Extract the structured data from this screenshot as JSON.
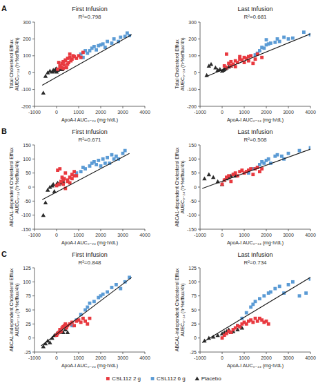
{
  "chart_data": [
    {
      "type": "scatter",
      "title": "First Infusion",
      "subtitle": "R²=0.798",
      "ylabel": "Total Cholesterol Efflux\nAUEC₀₋₂₄ (h·%efflux/4h)",
      "xlabel": "ApoA-I AUC₀₋₂₄ (mg·h/dL)",
      "xlim": [
        -1000,
        4000
      ],
      "ylim": [
        -200,
        300
      ],
      "xticks": [
        -1000,
        0,
        1000,
        2000,
        3000,
        4000
      ],
      "yticks": [
        -200,
        -100,
        0,
        100,
        200,
        300
      ],
      "grid": false,
      "legend": "bottom",
      "annotations": [
        {
          "text": "A"
        }
      ],
      "series": [
        {
          "name": "CSL112 2 g",
          "color": "#e8393f",
          "marker": "square",
          "x": [
            50,
            100,
            150,
            200,
            250,
            300,
            350,
            400,
            450,
            500,
            550,
            600,
            650,
            700,
            750,
            800,
            200,
            300,
            400,
            500,
            600,
            900,
            1000,
            1100,
            1200
          ],
          "values": [
            20,
            60,
            40,
            30,
            55,
            65,
            45,
            70,
            30,
            85,
            60,
            90,
            70,
            80,
            100,
            95,
            35,
            25,
            75,
            50,
            110,
            85,
            100,
            90,
            120
          ]
        },
        {
          "name": "CSL112 6 g",
          "color": "#5b9bd5",
          "marker": "square",
          "x": [
            1100,
            1300,
            1500,
            1600,
            1700,
            1800,
            1900,
            2000,
            2100,
            2200,
            2300,
            2500,
            2600,
            2800,
            2900,
            3100,
            3200,
            3300,
            1400,
            1200
          ],
          "values": [
            110,
            130,
            130,
            145,
            155,
            135,
            160,
            165,
            170,
            150,
            185,
            175,
            200,
            185,
            210,
            215,
            235,
            220,
            115,
            90
          ]
        },
        {
          "name": "Placebo",
          "color": "#2b2b2b",
          "marker": "triangle",
          "x": [
            -600,
            -500,
            -400,
            -300,
            -200,
            -150,
            -100,
            -50,
            0,
            0,
            50,
            100,
            150,
            200,
            250
          ],
          "values": [
            -120,
            -20,
            0,
            10,
            5,
            15,
            10,
            20,
            25,
            5,
            15,
            20,
            25,
            30,
            20
          ]
        },
        {
          "type": "line",
          "color": "#1a1a1a",
          "x": [
            -650,
            3400
          ],
          "values": [
            -75,
            225
          ]
        }
      ]
    },
    {
      "type": "scatter",
      "title": "Last Infusion",
      "subtitle": "R²=0.681",
      "ylabel": "Total Cholesterol Efflux\nAUEC₀₋₂₄ (h·%efflux/4h)",
      "xlabel": "ApoA-I AUC₀₋₂₄ (mg·h/dL)",
      "xlim": [
        -1000,
        4000
      ],
      "ylim": [
        -200,
        300
      ],
      "xticks": [
        -1000,
        0,
        1000,
        2000,
        3000,
        4000
      ],
      "yticks": [
        -200,
        -100,
        0,
        100,
        200,
        300
      ],
      "grid": false,
      "series": [
        {
          "color": "#e8393f",
          "marker": "square",
          "x": [
            100,
            200,
            300,
            400,
            500,
            600,
            700,
            800,
            900,
            1000,
            1100,
            1200,
            1300,
            1400,
            1500,
            200,
            400,
            600,
            800,
            1000,
            1200,
            1600,
            1800
          ],
          "values": [
            40,
            30,
            55,
            65,
            50,
            70,
            60,
            80,
            75,
            90,
            85,
            95,
            100,
            55,
            80,
            110,
            40,
            35,
            95,
            60,
            70,
            110,
            90
          ]
        },
        {
          "color": "#5b9bd5",
          "marker": "square",
          "x": [
            1600,
            1700,
            1800,
            1900,
            2000,
            2100,
            2200,
            2400,
            2500,
            2600,
            2800,
            3000,
            3200,
            3700,
            4000,
            1500,
            2000
          ],
          "values": [
            115,
            130,
            150,
            145,
            165,
            170,
            175,
            180,
            200,
            185,
            210,
            200,
            205,
            240,
            225,
            105,
            195
          ]
        },
        {
          "color": "#2b2b2b",
          "marker": "triangle",
          "x": [
            -700,
            -600,
            -500,
            -300,
            -200,
            -100,
            0,
            50,
            100,
            150,
            200,
            300,
            400
          ],
          "values": [
            -15,
            40,
            50,
            30,
            15,
            20,
            10,
            15,
            20,
            25,
            30,
            35,
            40
          ]
        },
        {
          "type": "line",
          "color": "#1a1a1a",
          "x": [
            -750,
            4000
          ],
          "values": [
            -25,
            230
          ]
        }
      ]
    },
    {
      "type": "scatter",
      "title": "First Infusion",
      "subtitle": "R²=0.671",
      "ylabel": "ABCA1-dependent Cholesterol Efflux\nAUEC₀₋₂₄ (h·%efflux/4h)",
      "xlabel": "ApoA-I AUC₀₋₂₄ (mg·h/dL)",
      "xlim": [
        -1000,
        4000
      ],
      "ylim": [
        -150,
        150
      ],
      "xticks": [
        -1000,
        0,
        1000,
        2000,
        3000,
        4000
      ],
      "yticks": [
        -150,
        -100,
        -50,
        0,
        50,
        100,
        150
      ],
      "grid": false,
      "annotations": [
        {
          "text": "B"
        }
      ],
      "series": [
        {
          "color": "#e8393f",
          "marker": "square",
          "x": [
            0,
            50,
            100,
            200,
            250,
            300,
            350,
            400,
            500,
            600,
            700,
            800,
            150,
            400,
            600,
            700,
            800,
            900,
            300,
            500
          ],
          "values": [
            5,
            60,
            10,
            20,
            35,
            25,
            30,
            -5,
            25,
            35,
            30,
            40,
            65,
            50,
            15,
            45,
            55,
            40,
            10,
            20
          ]
        },
        {
          "color": "#5b9bd5",
          "marker": "square",
          "x": [
            900,
            1100,
            1300,
            1500,
            1600,
            1700,
            1900,
            2000,
            2100,
            2300,
            2400,
            2500,
            2700,
            2800,
            3000,
            3100,
            1200,
            1800,
            2200,
            2600
          ],
          "values": [
            50,
            55,
            65,
            75,
            85,
            90,
            95,
            75,
            100,
            105,
            85,
            115,
            110,
            100,
            120,
            130,
            70,
            80,
            85,
            100
          ]
        },
        {
          "color": "#2b2b2b",
          "marker": "triangle",
          "x": [
            -600,
            -500,
            -400,
            -300,
            -200,
            -150,
            -100,
            0,
            50,
            100,
            200,
            300
          ],
          "values": [
            -100,
            -55,
            -10,
            0,
            5,
            10,
            -15,
            10,
            15,
            10,
            15,
            20
          ]
        },
        {
          "type": "line",
          "color": "#1a1a1a",
          "x": [
            -650,
            3300
          ],
          "values": [
            -45,
            120
          ]
        }
      ]
    },
    {
      "type": "scatter",
      "title": "Last Infusion",
      "subtitle": "R²=0.508",
      "ylabel": "ABCA1-dependent Cholesterol Efflux\nAUEC₀₋₂₄ (h·%efflux/4h)",
      "xlabel": "ApoA-I AUC₀₋₂₄ (mg·h/dL)",
      "xlim": [
        -1000,
        4000
      ],
      "ylim": [
        -150,
        150
      ],
      "xticks": [
        -1000,
        0,
        1000,
        2000,
        3000,
        4000
      ],
      "yticks": [
        -150,
        -100,
        -50,
        0,
        50,
        100,
        150
      ],
      "grid": false,
      "series": [
        {
          "color": "#e8393f",
          "marker": "square",
          "x": [
            0,
            100,
            200,
            300,
            400,
            500,
            600,
            700,
            800,
            900,
            1000,
            1100,
            1200,
            1300,
            1400,
            1500,
            1600,
            1700,
            1800
          ],
          "values": [
            10,
            25,
            35,
            40,
            20,
            45,
            50,
            40,
            55,
            60,
            50,
            55,
            60,
            65,
            45,
            65,
            70,
            55,
            65
          ]
        },
        {
          "color": "#5b9bd5",
          "marker": "square",
          "x": [
            1200,
            1400,
            1600,
            1700,
            1800,
            1900,
            2000,
            2100,
            2200,
            2400,
            2500,
            2700,
            2800,
            3000,
            3500,
            4000
          ],
          "values": [
            50,
            65,
            70,
            80,
            90,
            85,
            95,
            100,
            85,
            110,
            115,
            110,
            100,
            120,
            130,
            140
          ]
        },
        {
          "color": "#2b2b2b",
          "marker": "triangle",
          "x": [
            -800,
            -600,
            -400,
            -200,
            0,
            100,
            200,
            300,
            400,
            500,
            600
          ],
          "values": [
            30,
            45,
            35,
            20,
            10,
            25,
            30,
            35,
            40,
            45,
            40
          ]
        },
        {
          "type": "line",
          "color": "#1a1a1a",
          "x": [
            -900,
            4000
          ],
          "values": [
            -5,
            135
          ]
        }
      ]
    },
    {
      "type": "scatter",
      "title": "First Infusion",
      "subtitle": "R²=0.848",
      "ylabel": "ABCA1-independent Cholesterol Efflux\nAUEC₀₋₂₄ (h·%efflux/4h)",
      "xlabel": "ApoA-I AUC₀₋₂₄ (mg·h/dL)",
      "xlim": [
        -1000,
        4000
      ],
      "ylim": [
        -25,
        125
      ],
      "xticks": [
        -1000,
        0,
        1000,
        2000,
        3000,
        4000
      ],
      "yticks": [
        -25,
        0,
        25,
        50,
        75,
        100,
        125
      ],
      "grid": false,
      "annotations": [
        {
          "text": "C"
        }
      ],
      "series": [
        {
          "color": "#e8393f",
          "marker": "square",
          "x": [
            0,
            50,
            100,
            150,
            200,
            250,
            300,
            350,
            400,
            450,
            500,
            600,
            700,
            800,
            900,
            1000,
            1100,
            1200,
            1300,
            1400,
            1500
          ],
          "values": [
            5,
            8,
            10,
            15,
            12,
            18,
            20,
            22,
            25,
            18,
            22,
            25,
            28,
            22,
            30,
            32,
            28,
            35,
            30,
            25,
            35
          ]
        },
        {
          "color": "#5b9bd5",
          "marker": "square",
          "x": [
            700,
            900,
            1100,
            1300,
            1400,
            1500,
            1700,
            1900,
            2000,
            2100,
            2300,
            2500,
            2700,
            2900,
            3100,
            3300
          ],
          "values": [
            22,
            32,
            42,
            50,
            55,
            62,
            65,
            72,
            75,
            78,
            82,
            90,
            95,
            88,
            100,
            108
          ]
        },
        {
          "color": "#2b2b2b",
          "marker": "triangle",
          "x": [
            -600,
            -500,
            -400,
            -300,
            -200,
            -100,
            0,
            100,
            200,
            300,
            400,
            500
          ],
          "values": [
            -15,
            -10,
            -5,
            -8,
            0,
            5,
            8,
            10,
            12,
            10,
            15,
            10
          ]
        },
        {
          "type": "line",
          "color": "#1a1a1a",
          "x": [
            -700,
            3400
          ],
          "values": [
            -14,
            108
          ]
        }
      ]
    },
    {
      "type": "scatter",
      "title": "Last Infusion",
      "subtitle": "R²=0.734",
      "ylabel": "ABCA1-independent Cholesterol Efflux\nAUEC₀₋₂₄ (h·%efflux/4h)",
      "xlabel": "ApoA-I AUC₀₋₂₄ (mg·h/dL)",
      "xlim": [
        -1000,
        4000
      ],
      "ylim": [
        -25,
        125
      ],
      "xticks": [
        -1000,
        0,
        1000,
        2000,
        3000,
        4000
      ],
      "yticks": [
        -25,
        0,
        25,
        50,
        75,
        100,
        125
      ],
      "grid": false,
      "series": [
        {
          "color": "#e8393f",
          "marker": "square",
          "x": [
            0,
            100,
            200,
            300,
            400,
            500,
            600,
            700,
            800,
            900,
            1000,
            1100,
            1200,
            1300,
            1400,
            1500,
            1600,
            1700,
            1800,
            1900,
            2000,
            2100
          ],
          "values": [
            0,
            5,
            8,
            12,
            10,
            15,
            18,
            22,
            20,
            25,
            28,
            25,
            30,
            32,
            28,
            35,
            30,
            35,
            32,
            28,
            30,
            25
          ]
        },
        {
          "color": "#5b9bd5",
          "marker": "square",
          "x": [
            700,
            900,
            1100,
            1300,
            1400,
            1500,
            1700,
            1900,
            2100,
            2200,
            2400,
            2600,
            2800,
            3000,
            3200,
            3500,
            3800,
            4000
          ],
          "values": [
            22,
            35,
            45,
            55,
            60,
            65,
            70,
            75,
            80,
            82,
            88,
            92,
            80,
            95,
            100,
            75,
            80,
            105
          ]
        },
        {
          "color": "#2b2b2b",
          "marker": "triangle",
          "x": [
            -800,
            -600,
            -400,
            -200,
            0,
            100,
            200,
            300,
            400,
            500,
            700,
            900
          ],
          "values": [
            -5,
            0,
            2,
            5,
            8,
            10,
            12,
            15,
            10,
            12,
            15,
            18
          ]
        },
        {
          "type": "line",
          "color": "#1a1a1a",
          "x": [
            -900,
            4000
          ],
          "values": [
            -8,
            108
          ]
        }
      ]
    }
  ]
}
